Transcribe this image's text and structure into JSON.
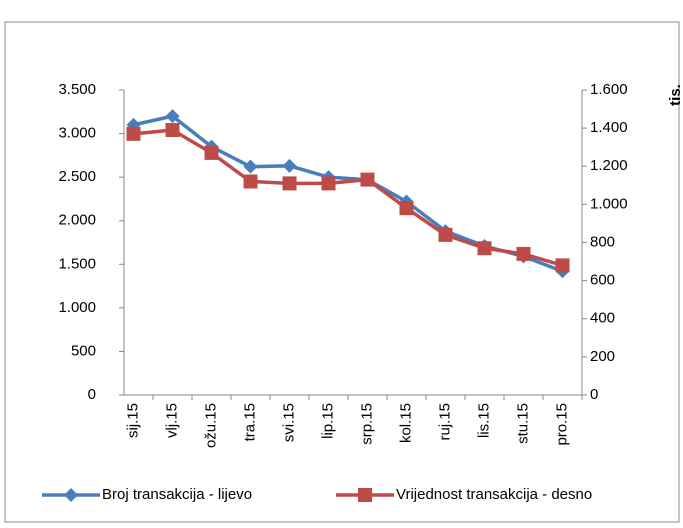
{
  "chart_data": {
    "type": "line",
    "categories": [
      "sij.15",
      "vlj.15",
      "ožu.15",
      "tra.15",
      "svi.15",
      "lip.15",
      "srp.15",
      "kol.15",
      "ruj.15",
      "lis.15",
      "stu.15",
      "pro.15"
    ],
    "series": [
      {
        "name": "Broj transakcija - lijevo",
        "color": "#4a7ebb",
        "marker": "diamond",
        "values": [
          3100,
          3200,
          2850,
          2620,
          2630,
          2500,
          2470,
          2220,
          1880,
          1710,
          1590,
          1420
        ]
      },
      {
        "name": "Vrijednost transakcija - desno",
        "color": "#be4b48",
        "marker": "square",
        "axis": "y2",
        "values": [
          1370,
          1390,
          1270,
          1120,
          1110,
          1110,
          1130,
          980,
          840,
          770,
          740,
          680
        ]
      }
    ],
    "ylim": [
      0,
      3500
    ],
    "yticks": [
      0,
      500,
      {
        "value": 1000,
        "label": "1.000"
      },
      {
        "value": 1500,
        "label": "1.500"
      },
      {
        "value": 2000,
        "label": "2.000"
      },
      {
        "value": 2500,
        "label": "2.500"
      },
      {
        "value": 3000,
        "label": "3.000"
      },
      {
        "value": 3500,
        "label": "3.500"
      }
    ],
    "y2lim": [
      0,
      1600
    ],
    "y2ticks": [
      0,
      200,
      400,
      600,
      800,
      {
        "value": 1000,
        "label": "1.000"
      },
      {
        "value": 1200,
        "label": "1.200"
      },
      {
        "value": 1400,
        "label": "1.400"
      },
      {
        "value": 1600,
        "label": "1.600"
      }
    ],
    "y2label": "tis.",
    "legend": "bottom"
  }
}
